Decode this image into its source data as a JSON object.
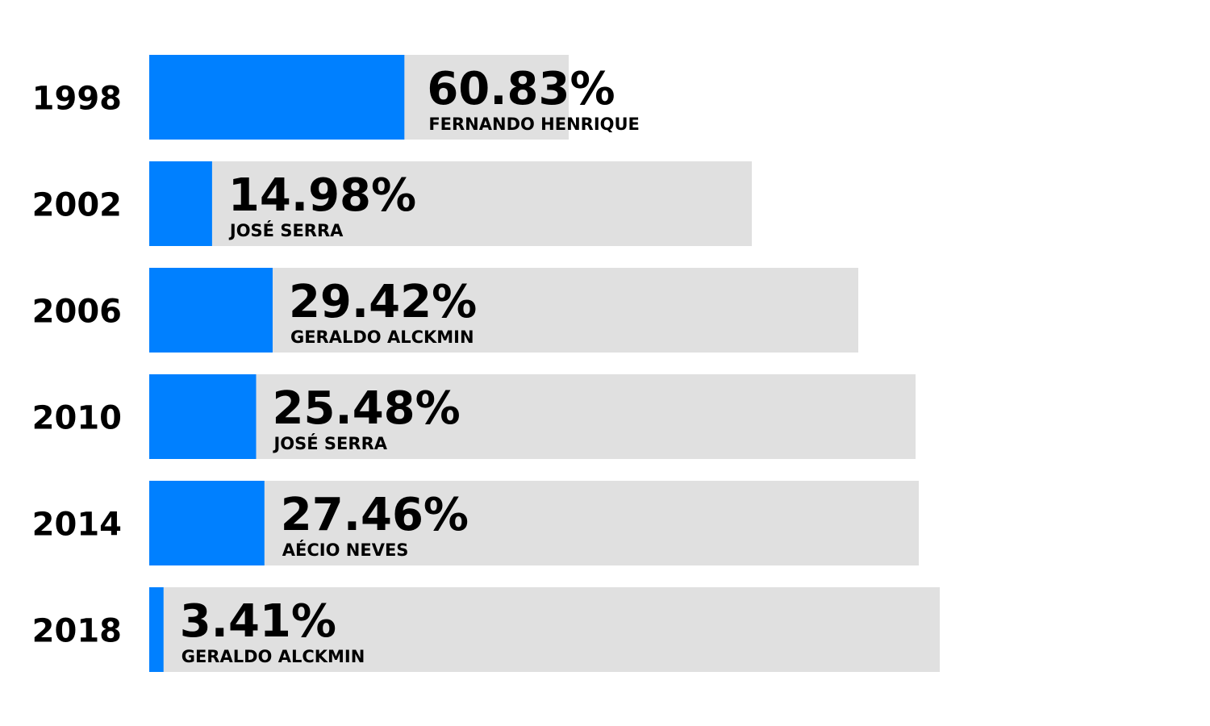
{
  "chart_data": {
    "type": "bar",
    "orientation": "horizontal",
    "categories": [
      "1998",
      "2002",
      "2006",
      "2010",
      "2014",
      "2018"
    ],
    "series": [
      {
        "values": [
          60.83,
          14.98,
          29.42,
          25.48,
          27.46,
          3.41
        ],
        "color": "#0080ff"
      }
    ],
    "labels": [
      "60.83%",
      "14.98%",
      "29.42%",
      "25.48%",
      "27.46%",
      "3.41%"
    ],
    "candidates": [
      "FERNANDO HENRIQUE",
      "JOSÉ SERRA",
      "GERALDO ALCKMIN",
      "JOSÉ SERRA",
      "AÉCIO NEVES",
      "GERALDO ALCKMIN"
    ],
    "track_color": "#e0e0e0",
    "title": "",
    "xlabel": "",
    "ylabel": "",
    "grid": false,
    "legend": "none"
  }
}
